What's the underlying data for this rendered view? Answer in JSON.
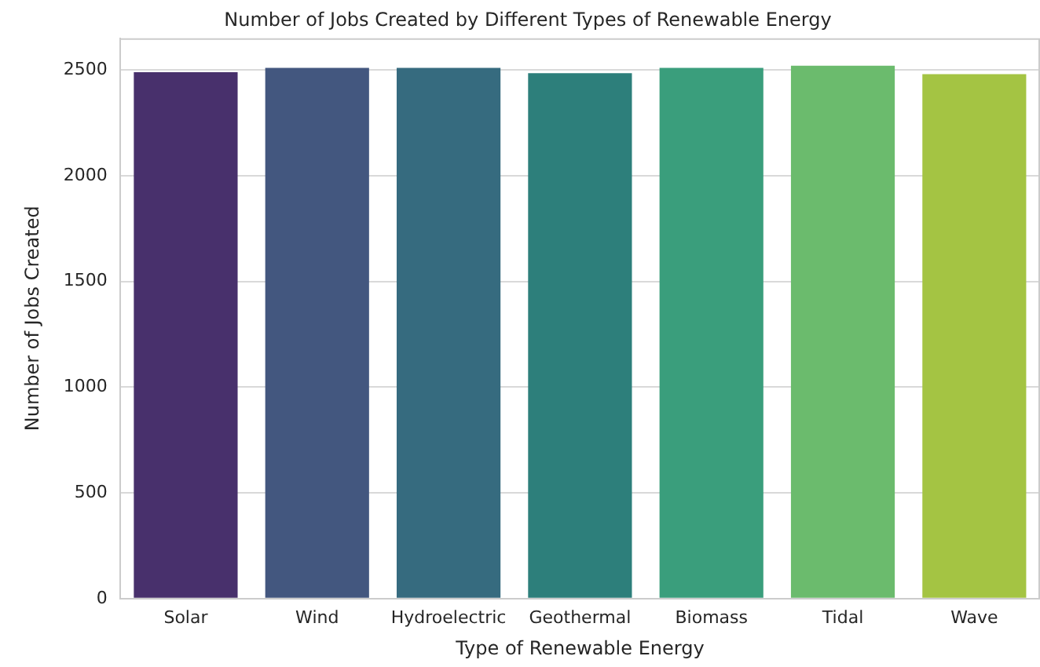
{
  "chart_data": {
    "type": "bar",
    "title": "Number of Jobs Created by Different Types of Renewable Energy",
    "xlabel": "Type of Renewable Energy",
    "ylabel": "Number of Jobs Created",
    "categories": [
      "Solar",
      "Wind",
      "Hydroelectric",
      "Geothermal",
      "Biomass",
      "Tidal",
      "Wave"
    ],
    "values": [
      2490,
      2510,
      2510,
      2485,
      2510,
      2520,
      2480
    ],
    "colors": [
      "#48306c",
      "#43577f",
      "#366b7f",
      "#2d7f7b",
      "#3a9e7c",
      "#6bbb6d",
      "#a4c443"
    ],
    "ylim": [
      0,
      2650
    ],
    "yticks": [
      0,
      500,
      1000,
      1500,
      2000,
      2500
    ],
    "grid": "y",
    "legend": false
  }
}
